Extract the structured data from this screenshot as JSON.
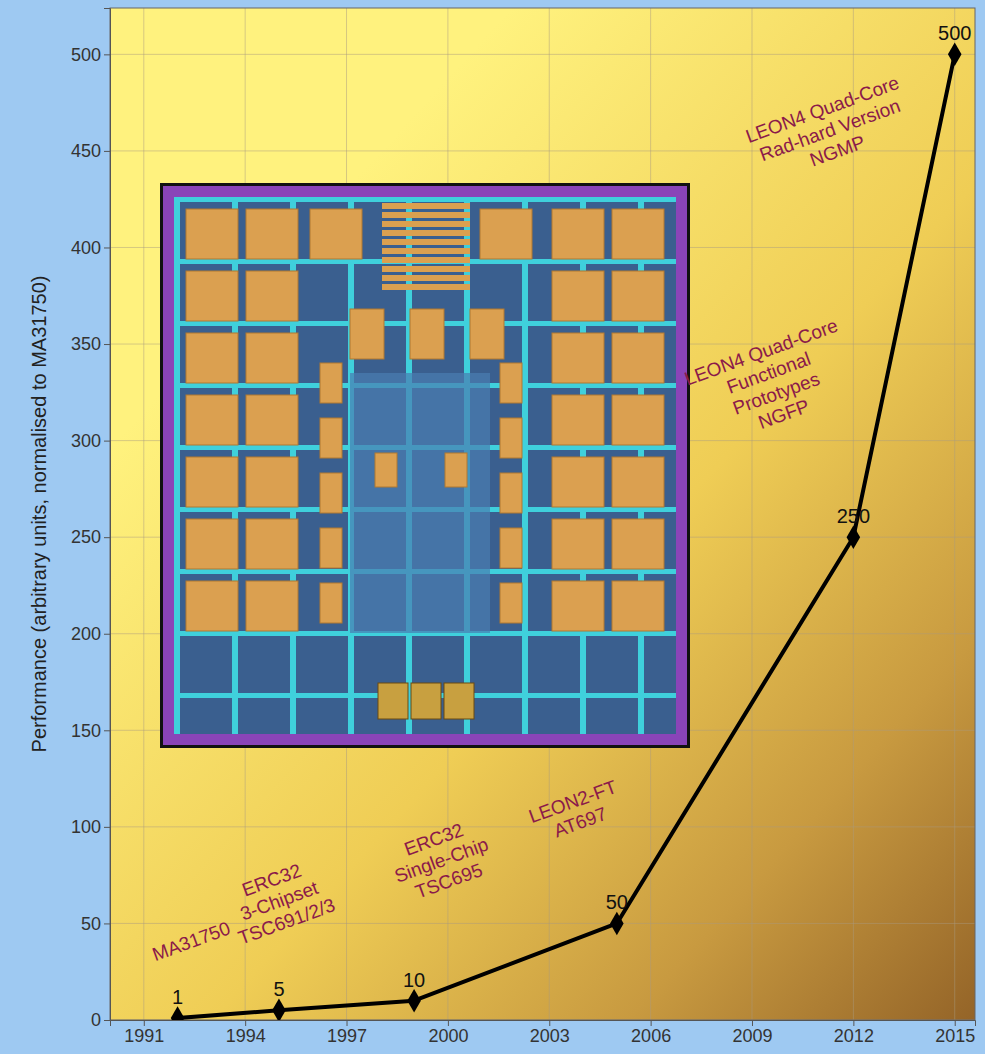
{
  "chart_data": {
    "type": "line",
    "ylabel": "Performance (arbitrary units, normalised to MA31750)",
    "x": [
      1992,
      1995,
      1999,
      2005,
      2012,
      2015
    ],
    "values": [
      1,
      5,
      10,
      50,
      250,
      500
    ],
    "color": "#000000",
    "marker": "diamond",
    "data_labels": true,
    "grid": true,
    "xlim": [
      1990,
      2015.6
    ],
    "ylim": [
      0,
      524
    ],
    "xticks": [
      1991,
      1994,
      1997,
      2000,
      2003,
      2006,
      2009,
      2012,
      2015
    ],
    "yticks": [
      0,
      50,
      100,
      150,
      200,
      250,
      300,
      350,
      400,
      450,
      500
    ],
    "annotations": [
      {
        "lines": [
          "MA31750"
        ],
        "x": 1992.4,
        "y": 41
      },
      {
        "lines": [
          "ERC32",
          "3-Chipset",
          "TSC691/2/3"
        ],
        "x": 1995.0,
        "y": 62
      },
      {
        "lines": [
          "ERC32",
          "Single-Chip",
          "TSC695"
        ],
        "x": 1999.8,
        "y": 83
      },
      {
        "lines": [
          "LEON2-FT",
          "AT697"
        ],
        "x": 2003.8,
        "y": 108
      },
      {
        "lines": [
          "LEON4 Quad-Core",
          "Functional",
          "Prototypes",
          "NGFP"
        ],
        "x": 2009.6,
        "y": 330
      },
      {
        "lines": [
          "LEON4 Quad-Core",
          "Rad-hard Version",
          "NGMP"
        ],
        "x": 2011.3,
        "y": 461
      }
    ]
  }
}
